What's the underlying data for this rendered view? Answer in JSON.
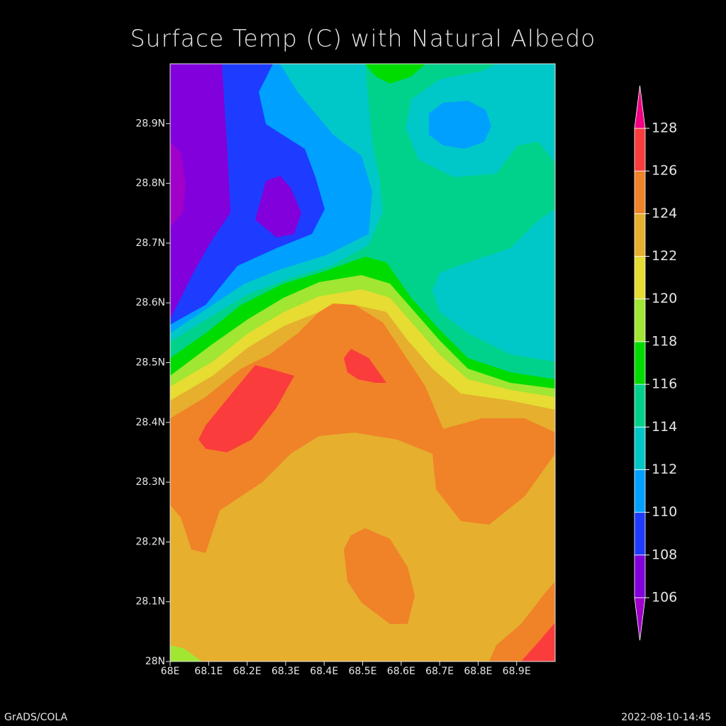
{
  "chart_data": {
    "type": "contour",
    "title": "Surface Temp (C) with Natural Albedo",
    "xlim": [
      68,
      69
    ],
    "ylim": [
      28,
      29
    ],
    "xticks": [
      {
        "value": 68,
        "label": "68E"
      },
      {
        "value": 68.1,
        "label": "68.1E"
      },
      {
        "value": 68.2,
        "label": "68.2E"
      },
      {
        "value": 68.3,
        "label": "68.3E"
      },
      {
        "value": 68.4,
        "label": "68.4E"
      },
      {
        "value": 68.5,
        "label": "68.5E"
      },
      {
        "value": 68.6,
        "label": "68.6E"
      },
      {
        "value": 68.7,
        "label": "68.7E"
      },
      {
        "value": 68.8,
        "label": "68.8E"
      },
      {
        "value": 68.9,
        "label": "68.9E"
      }
    ],
    "yticks": [
      {
        "value": 28,
        "label": "28N"
      },
      {
        "value": 28.1,
        "label": "28.1N"
      },
      {
        "value": 28.2,
        "label": "28.2N"
      },
      {
        "value": 28.3,
        "label": "28.3N"
      },
      {
        "value": 28.4,
        "label": "28.4N"
      },
      {
        "value": 28.5,
        "label": "28.5N"
      },
      {
        "value": 28.6,
        "label": "28.6N"
      },
      {
        "value": 28.7,
        "label": "28.7N"
      },
      {
        "value": 28.8,
        "label": "28.8N"
      },
      {
        "value": 28.9,
        "label": "28.9N"
      }
    ],
    "levels": [
      106,
      108,
      110,
      112,
      114,
      116,
      118,
      120,
      122,
      124,
      126,
      128
    ],
    "colors": [
      "#a000c8",
      "#8200dc",
      "#1e3cff",
      "#00a0ff",
      "#00c8c8",
      "#00d28c",
      "#00dc00",
      "#a0e632",
      "#e6dc32",
      "#e6af2d",
      "#f08228",
      "#fa3c3c",
      "#f00082"
    ],
    "footer_left": "GrADS/COLA",
    "footer_right": "2022-08-10-14:45"
  }
}
